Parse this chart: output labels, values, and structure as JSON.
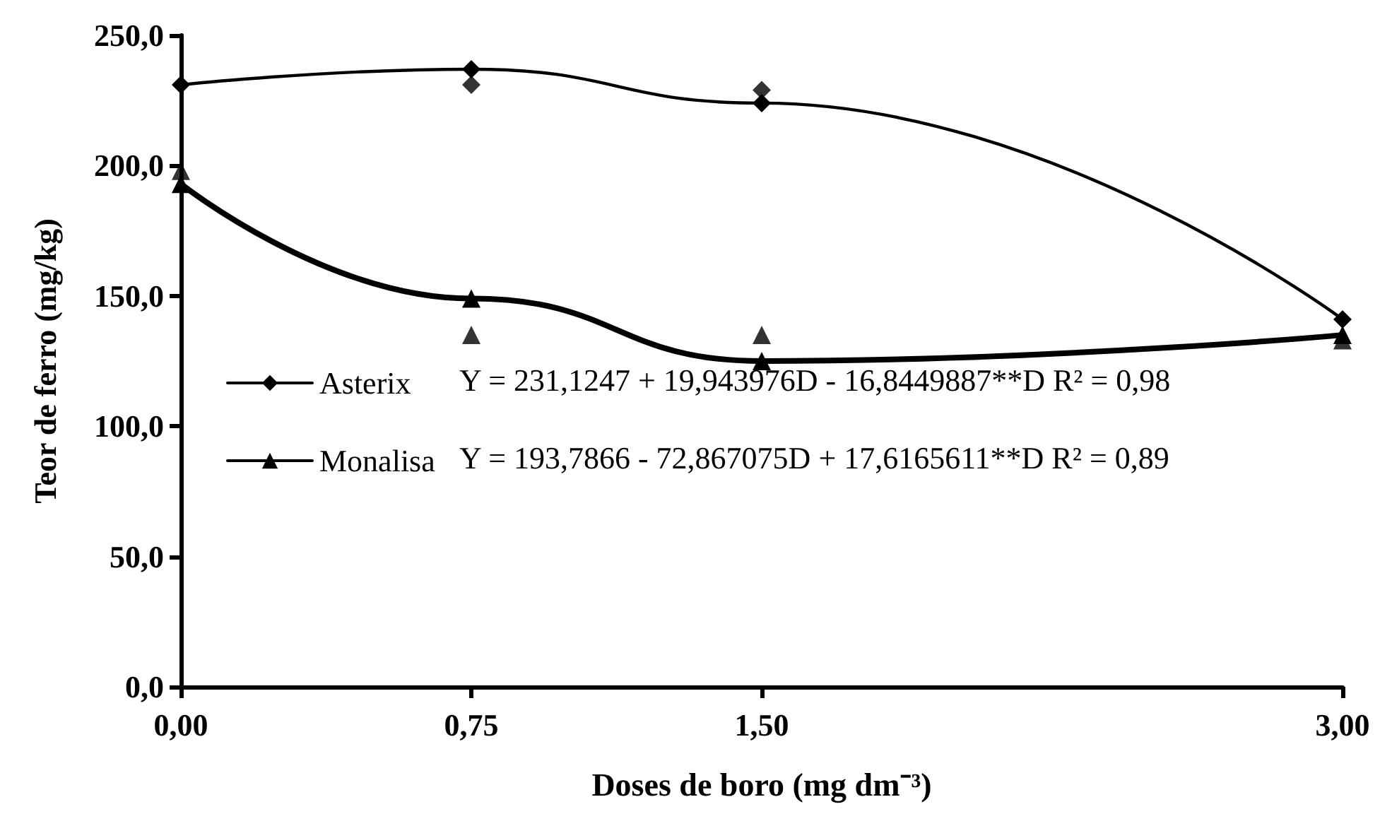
{
  "chart_data": {
    "type": "line",
    "xlabel": "Doses de boro (mg dm⁻³)",
    "ylabel": "Teor de ferro (mg/kg)",
    "xlim": [
      0,
      3
    ],
    "xticks": [
      {
        "value": 0,
        "label": "0,00"
      },
      {
        "value": 0.75,
        "label": "0,75"
      },
      {
        "value": 1.5,
        "label": "1,50"
      },
      {
        "value": 3,
        "label": "3,00"
      }
    ],
    "ylim": [
      0,
      250
    ],
    "yticks": [
      {
        "value": 0,
        "label": "0,0"
      },
      {
        "value": 50,
        "label": "50,0"
      },
      {
        "value": 100,
        "label": "100,0"
      },
      {
        "value": 150,
        "label": "150,0"
      },
      {
        "value": 200,
        "label": "200,0"
      },
      {
        "value": 250,
        "label": "250,0"
      }
    ],
    "grid": false,
    "legend": "bottom left",
    "annotations": [
      "Y = 231,1247 + 19,943976D - 16,8449887**D R² = 0,98",
      "Y = 193,7866 - 72,867075D + 17,6165611**D R² = 0,89"
    ],
    "series": [
      {
        "name": "Asterix",
        "marker": "diamond",
        "color": "#000000",
        "x": [
          0,
          0.75,
          1.5,
          3
        ],
        "values": [
          231,
          237,
          224,
          141
        ]
      },
      {
        "type": "scatter",
        "marker": "diamond",
        "color": "#000000",
        "x": [
          0.75,
          1.5
        ],
        "values": [
          231,
          229
        ]
      },
      {
        "name": "Monalisa",
        "marker": "triangle",
        "color": "#000000",
        "x": [
          0,
          0.75,
          1.5,
          3
        ],
        "values": [
          193,
          149,
          125,
          135
        ]
      },
      {
        "type": "scatter",
        "marker": "triangle",
        "color": "#000000",
        "x": [
          0,
          0.75,
          1.5,
          3
        ],
        "values": [
          198,
          135,
          135,
          133
        ]
      }
    ]
  }
}
